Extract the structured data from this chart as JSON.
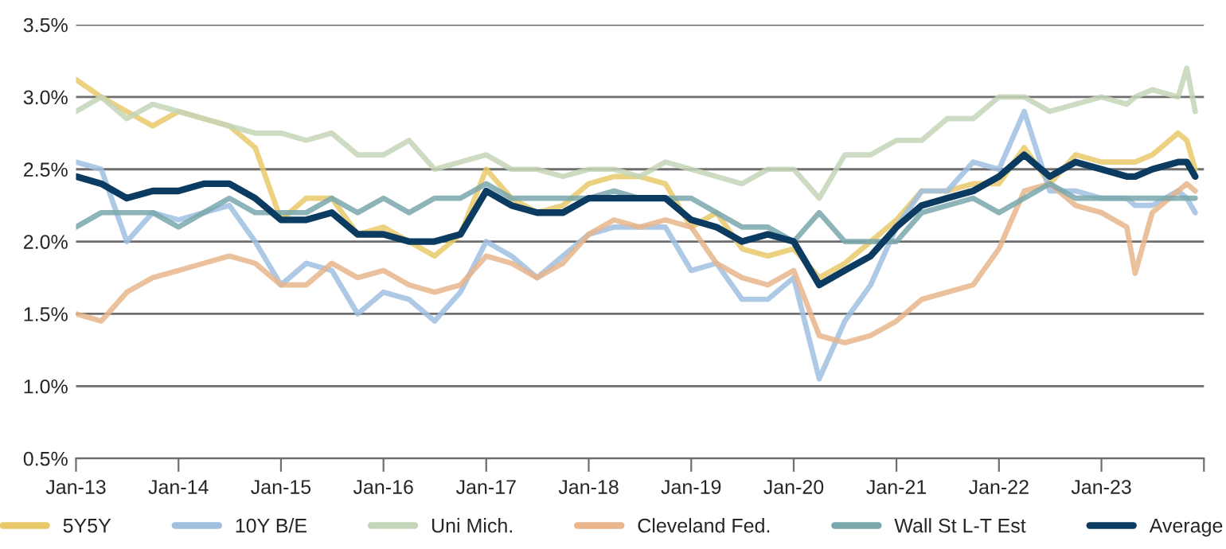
{
  "chart_data": {
    "type": "line",
    "x": [
      "2013-01",
      "2013-04",
      "2013-07",
      "2013-10",
      "2014-01",
      "2014-04",
      "2014-07",
      "2014-10",
      "2015-01",
      "2015-04",
      "2015-07",
      "2015-10",
      "2016-01",
      "2016-04",
      "2016-07",
      "2016-10",
      "2017-01",
      "2017-04",
      "2017-07",
      "2017-10",
      "2018-01",
      "2018-04",
      "2018-07",
      "2018-10",
      "2019-01",
      "2019-04",
      "2019-07",
      "2019-10",
      "2020-01",
      "2020-04",
      "2020-07",
      "2020-10",
      "2021-01",
      "2021-04",
      "2021-07",
      "2021-10",
      "2022-01",
      "2022-04",
      "2022-07",
      "2022-10",
      "2023-01",
      "2023-04",
      "2023-05",
      "2023-07",
      "2023-10",
      "2023-11",
      "2023-12"
    ],
    "series": [
      {
        "name": "5Y5Y",
        "color": "#e8c96a",
        "values": [
          3.12,
          3.0,
          2.9,
          2.8,
          2.9,
          2.85,
          2.8,
          2.65,
          2.15,
          2.3,
          2.3,
          2.05,
          2.1,
          2.0,
          1.9,
          2.05,
          2.5,
          2.3,
          2.2,
          2.25,
          2.4,
          2.45,
          2.45,
          2.4,
          2.1,
          2.2,
          1.95,
          1.9,
          1.95,
          1.75,
          1.85,
          2.0,
          2.15,
          2.35,
          2.35,
          2.4,
          2.4,
          2.65,
          2.4,
          2.6,
          2.55,
          2.55,
          2.55,
          2.6,
          2.75,
          2.7,
          2.5
        ]
      },
      {
        "name": "10Y B/E",
        "color": "#9fc0e0",
        "values": [
          2.55,
          2.5,
          2.0,
          2.2,
          2.15,
          2.2,
          2.25,
          2.0,
          1.7,
          1.85,
          1.8,
          1.5,
          1.65,
          1.6,
          1.45,
          1.65,
          2.0,
          1.9,
          1.75,
          1.9,
          2.05,
          2.1,
          2.1,
          2.1,
          1.8,
          1.85,
          1.6,
          1.6,
          1.75,
          1.05,
          1.45,
          1.7,
          2.1,
          2.35,
          2.35,
          2.55,
          2.5,
          2.9,
          2.35,
          2.35,
          2.3,
          2.3,
          2.25,
          2.25,
          2.35,
          2.3,
          2.2
        ]
      },
      {
        "name": "Uni Mich.",
        "color": "#c5d5b8",
        "values": [
          2.9,
          3.0,
          2.85,
          2.95,
          2.9,
          2.85,
          2.8,
          2.75,
          2.75,
          2.7,
          2.75,
          2.6,
          2.6,
          2.7,
          2.5,
          2.55,
          2.6,
          2.5,
          2.5,
          2.45,
          2.5,
          2.5,
          2.45,
          2.55,
          2.5,
          2.45,
          2.4,
          2.5,
          2.5,
          2.3,
          2.6,
          2.6,
          2.7,
          2.7,
          2.85,
          2.85,
          3.0,
          3.0,
          2.9,
          2.95,
          3.0,
          2.95,
          3.0,
          3.05,
          3.0,
          3.2,
          2.9
        ]
      },
      {
        "name": "Cleveland Fed.",
        "color": "#e8b58c",
        "values": [
          1.5,
          1.45,
          1.65,
          1.75,
          1.8,
          1.85,
          1.9,
          1.85,
          1.7,
          1.7,
          1.85,
          1.75,
          1.8,
          1.7,
          1.65,
          1.7,
          1.9,
          1.85,
          1.75,
          1.85,
          2.05,
          2.15,
          2.1,
          2.15,
          2.1,
          1.85,
          1.75,
          1.7,
          1.8,
          1.35,
          1.3,
          1.35,
          1.45,
          1.6,
          1.65,
          1.7,
          1.95,
          2.35,
          2.4,
          2.25,
          2.2,
          2.1,
          1.78,
          2.2,
          2.35,
          2.4,
          2.35
        ]
      },
      {
        "name": "Wall St L-T Est",
        "color": "#79a7ab",
        "values": [
          2.1,
          2.2,
          2.2,
          2.2,
          2.1,
          2.2,
          2.3,
          2.2,
          2.2,
          2.2,
          2.3,
          2.2,
          2.3,
          2.2,
          2.3,
          2.3,
          2.4,
          2.3,
          2.3,
          2.3,
          2.3,
          2.35,
          2.3,
          2.3,
          2.3,
          2.2,
          2.1,
          2.1,
          2.0,
          2.2,
          2.0,
          2.0,
          2.0,
          2.2,
          2.25,
          2.3,
          2.2,
          2.3,
          2.4,
          2.3,
          2.3,
          2.3,
          2.3,
          2.3,
          2.3,
          2.3,
          2.3
        ]
      },
      {
        "name": "Average",
        "color": "#0b3b60",
        "values": [
          2.45,
          2.4,
          2.3,
          2.35,
          2.35,
          2.4,
          2.4,
          2.3,
          2.15,
          2.15,
          2.2,
          2.05,
          2.05,
          2.0,
          2.0,
          2.05,
          2.35,
          2.25,
          2.2,
          2.2,
          2.3,
          2.3,
          2.3,
          2.3,
          2.15,
          2.1,
          2.0,
          2.05,
          2.0,
          1.7,
          1.8,
          1.9,
          2.1,
          2.25,
          2.3,
          2.35,
          2.45,
          2.6,
          2.45,
          2.55,
          2.5,
          2.45,
          2.45,
          2.5,
          2.55,
          2.55,
          2.45
        ]
      }
    ],
    "xlim": [
      "2013-01",
      "2024-01"
    ],
    "xticks": [
      {
        "value": "2013-01",
        "label": "Jan-13"
      },
      {
        "value": "2014-01",
        "label": "Jan-14"
      },
      {
        "value": "2015-01",
        "label": "Jan-15"
      },
      {
        "value": "2016-01",
        "label": "Jan-16"
      },
      {
        "value": "2017-01",
        "label": "Jan-17"
      },
      {
        "value": "2018-01",
        "label": "Jan-18"
      },
      {
        "value": "2019-01",
        "label": "Jan-19"
      },
      {
        "value": "2020-01",
        "label": "Jan-20"
      },
      {
        "value": "2021-01",
        "label": "Jan-21"
      },
      {
        "value": "2022-01",
        "label": "Jan-22"
      },
      {
        "value": "2023-01",
        "label": "Jan-23"
      },
      {
        "value": "2024-01",
        "label": null
      }
    ],
    "ylim": [
      0.5,
      3.5
    ],
    "yticks": [
      {
        "value": 0.5,
        "label": "0.5%"
      },
      {
        "value": 1.0,
        "label": "1.0%"
      },
      {
        "value": 1.5,
        "label": "1.5%"
      },
      {
        "value": 2.0,
        "label": "2.0%"
      },
      {
        "value": 2.5,
        "label": "2.5%"
      },
      {
        "value": 3.0,
        "label": "3.0%"
      },
      {
        "value": 3.5,
        "label": "3.5%"
      }
    ],
    "grid": "y",
    "legend": "bottom",
    "marker": "none",
    "line_style": "solid"
  }
}
